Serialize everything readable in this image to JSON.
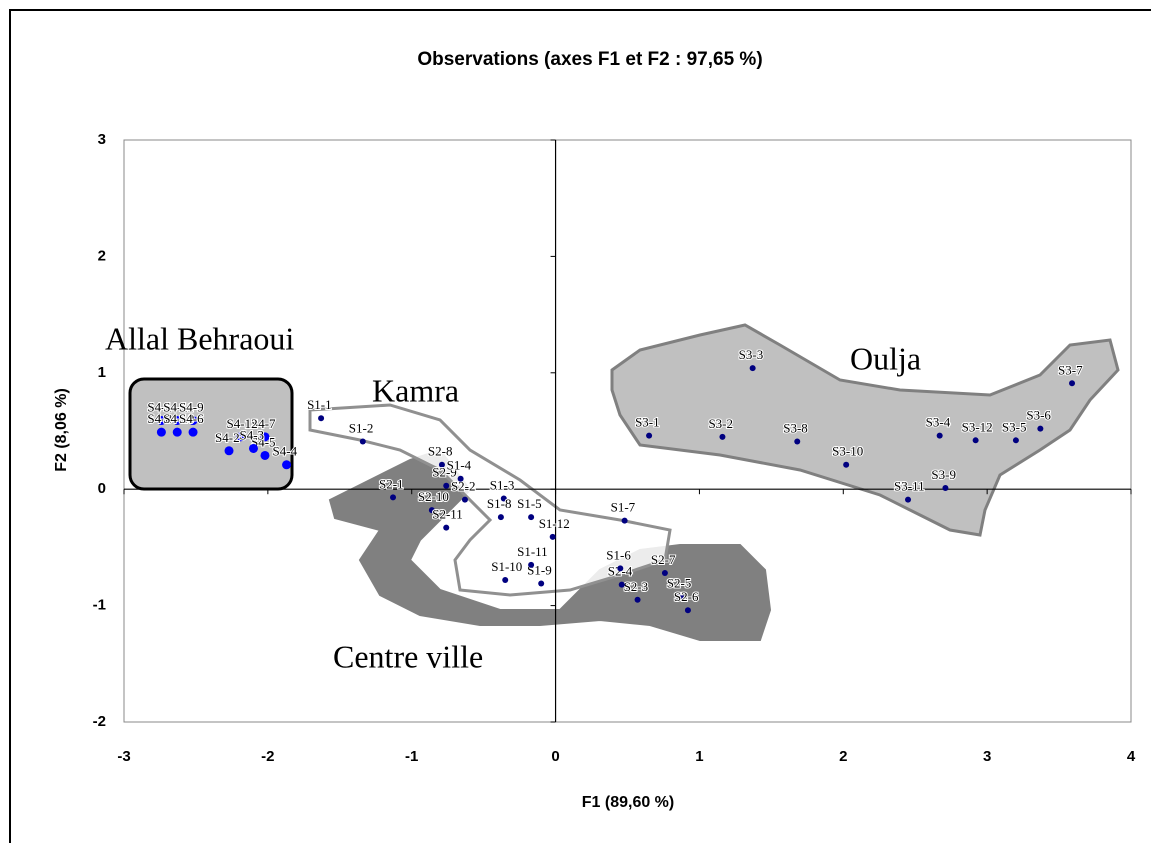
{
  "chart_data": {
    "type": "scatter",
    "title": "Observations (axes F1 et F2 : 97,65 %)",
    "x_label": "F1 (89,60 %)",
    "y_label": "F2 (8,06 %)",
    "xlim": [
      -3,
      4
    ],
    "ylim": [
      -2,
      3
    ],
    "xticks": [
      -3,
      -2,
      -1,
      0,
      1,
      2,
      3,
      4
    ],
    "yticks": [
      -2,
      -1,
      0,
      1,
      2,
      3
    ],
    "annotations": [
      "Allal Behraoui",
      "Kamra",
      "Oulja",
      "Centre ville"
    ],
    "series": [
      {
        "color": "#000080",
        "labels": [
          "S3-1",
          "S3-2",
          "S3-3",
          "S3-4",
          "S3-5",
          "S3-6",
          "S3-7",
          "S3-8",
          "S3-9",
          "S3-10",
          "S3-11",
          "S3-12"
        ],
        "x": [
          0.65,
          1.16,
          1.37,
          2.67,
          3.2,
          3.37,
          3.59,
          1.68,
          2.71,
          2.02,
          2.45,
          2.92
        ],
        "values": [
          0.46,
          0.45,
          1.04,
          0.46,
          0.42,
          0.52,
          0.91,
          0.41,
          0.01,
          0.21,
          -0.09,
          0.42
        ]
      },
      {
        "color": "#000080",
        "labels": [
          "S2-1",
          "S2-2",
          "S2-3",
          "S2-4",
          "S2-5",
          "S2-6",
          "S2-7",
          "S2-8",
          "S2-9",
          "S2-10",
          "S2-11"
        ],
        "x": [
          -1.13,
          -0.63,
          0.57,
          0.46,
          0.87,
          0.92,
          0.76,
          -0.79,
          -0.76,
          -0.86,
          -0.76
        ],
        "values": [
          -0.07,
          -0.09,
          -0.95,
          -0.82,
          -0.92,
          -1.04,
          -0.72,
          0.21,
          0.03,
          -0.18,
          -0.33
        ]
      },
      {
        "color": "#000080",
        "labels": [
          "S1-1",
          "S1-2",
          "S1-3",
          "S1-4",
          "S1-5",
          "S1-6",
          "S1-7",
          "S1-8",
          "S1-9",
          "S1-10",
          "S1-11",
          "S1-12"
        ],
        "x": [
          -1.63,
          -1.34,
          -0.36,
          -0.66,
          -0.17,
          0.45,
          0.48,
          -0.38,
          -0.1,
          -0.35,
          -0.17,
          -0.02
        ],
        "values": [
          0.61,
          0.41,
          -0.08,
          0.09,
          -0.24,
          -0.68,
          -0.27,
          -0.24,
          -0.81,
          -0.78,
          -0.65,
          -0.41
        ]
      },
      {
        "color": "#0000ff",
        "labels": [
          "S4-1",
          "S4-11",
          "S4-9",
          "S4-8",
          "S4-10",
          "S4-6",
          "S4-7",
          "S4-12",
          "S4-2",
          "S4-5",
          "S4-4",
          "S4-3"
        ],
        "x": [
          -2.74,
          -2.63,
          -2.52,
          -2.74,
          -2.63,
          -2.52,
          -2.02,
          -2.19,
          -2.27,
          -2.02,
          -1.87,
          -2.1
        ],
        "values": [
          0.59,
          0.59,
          0.59,
          0.49,
          0.49,
          0.49,
          0.45,
          0.45,
          0.33,
          0.29,
          0.21,
          0.35
        ]
      }
    ]
  }
}
